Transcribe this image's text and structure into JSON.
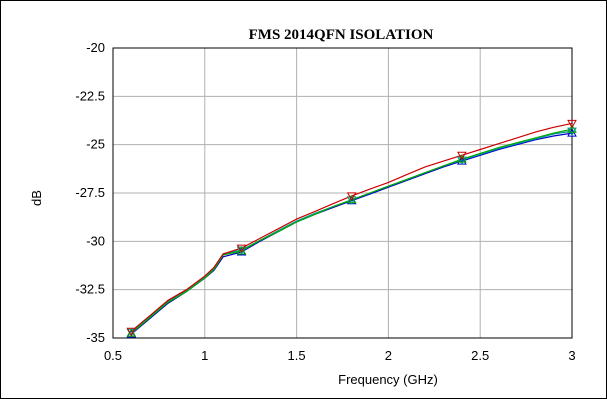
{
  "chart_data": {
    "type": "line",
    "title": "FMS 2014QFN ISOLATION",
    "xlabel": "Frequency (GHz)",
    "ylabel": "dB",
    "xlim": [
      0.5,
      3
    ],
    "ylim": [
      -35,
      -20
    ],
    "xticks": [
      "0.5",
      "1",
      "1.5",
      "2",
      "2.5",
      "3"
    ],
    "xtick_values": [
      0.5,
      1,
      1.5,
      2,
      2.5,
      3
    ],
    "yticks": [
      "-20",
      "-22.5",
      "-25",
      "-27.5",
      "-30",
      "-32.5",
      "-35"
    ],
    "ytick_values": [
      -20,
      -22.5,
      -25,
      -27.5,
      -30,
      -32.5,
      -35
    ],
    "grid": true,
    "marker_x": [
      0.6,
      1.2,
      1.8,
      2.4,
      3.0
    ],
    "series": [
      {
        "color": "#0000cc",
        "x": [
          0.6,
          0.7,
          0.8,
          0.9,
          1.0,
          1.05,
          1.1,
          1.2,
          1.3,
          1.4,
          1.5,
          1.6,
          1.7,
          1.8,
          1.9,
          2.0,
          2.1,
          2.2,
          2.3,
          2.4,
          2.5,
          2.6,
          2.7,
          2.8,
          2.9,
          3.0
        ],
        "values": [
          -34.8,
          -34.0,
          -33.2,
          -32.6,
          -31.9,
          -31.5,
          -30.8,
          -30.55,
          -30.0,
          -29.5,
          -29.0,
          -28.6,
          -28.25,
          -27.9,
          -27.55,
          -27.2,
          -26.85,
          -26.5,
          -26.15,
          -25.85,
          -25.55,
          -25.25,
          -25.0,
          -24.75,
          -24.55,
          -24.4
        ]
      },
      {
        "color": "#009999",
        "x": [
          0.6,
          0.7,
          0.8,
          0.9,
          1.0,
          1.05,
          1.1,
          1.2,
          1.3,
          1.4,
          1.5,
          1.6,
          1.7,
          1.8,
          1.9,
          2.0,
          2.1,
          2.2,
          2.3,
          2.4,
          2.5,
          2.6,
          2.7,
          2.8,
          2.9,
          3.0
        ],
        "values": [
          -34.7,
          -33.9,
          -33.1,
          -32.55,
          -31.85,
          -31.4,
          -30.65,
          -30.45,
          -29.95,
          -29.45,
          -28.95,
          -28.55,
          -28.2,
          -27.85,
          -27.5,
          -27.15,
          -26.8,
          -26.45,
          -26.1,
          -25.8,
          -25.5,
          -25.2,
          -24.95,
          -24.7,
          -24.45,
          -24.3
        ]
      },
      {
        "color": "#00aa00",
        "x": [
          0.6,
          0.7,
          0.8,
          0.9,
          1.0,
          1.05,
          1.1,
          1.2,
          1.3,
          1.4,
          1.5,
          1.6,
          1.7,
          1.8,
          1.9,
          2.0,
          2.1,
          2.2,
          2.3,
          2.4,
          2.5,
          2.6,
          2.7,
          2.8,
          2.9,
          3.0
        ],
        "values": [
          -34.75,
          -33.95,
          -33.15,
          -32.6,
          -31.9,
          -31.45,
          -30.7,
          -30.5,
          -29.95,
          -29.5,
          -29.0,
          -28.6,
          -28.2,
          -27.85,
          -27.5,
          -27.15,
          -26.8,
          -26.45,
          -26.1,
          -25.75,
          -25.45,
          -25.15,
          -24.9,
          -24.65,
          -24.4,
          -24.2
        ]
      },
      {
        "color": "#cc0000",
        "x": [
          0.6,
          0.7,
          0.8,
          0.9,
          1.0,
          1.05,
          1.1,
          1.2,
          1.3,
          1.4,
          1.5,
          1.6,
          1.7,
          1.8,
          1.9,
          2.0,
          2.1,
          2.2,
          2.3,
          2.4,
          2.5,
          2.6,
          2.7,
          2.8,
          2.9,
          3.0
        ],
        "values": [
          -34.65,
          -33.85,
          -33.05,
          -32.5,
          -31.8,
          -31.35,
          -30.65,
          -30.35,
          -29.85,
          -29.35,
          -28.85,
          -28.45,
          -28.05,
          -27.65,
          -27.3,
          -26.95,
          -26.55,
          -26.15,
          -25.85,
          -25.55,
          -25.25,
          -24.95,
          -24.65,
          -24.35,
          -24.1,
          -23.9
        ]
      }
    ]
  }
}
